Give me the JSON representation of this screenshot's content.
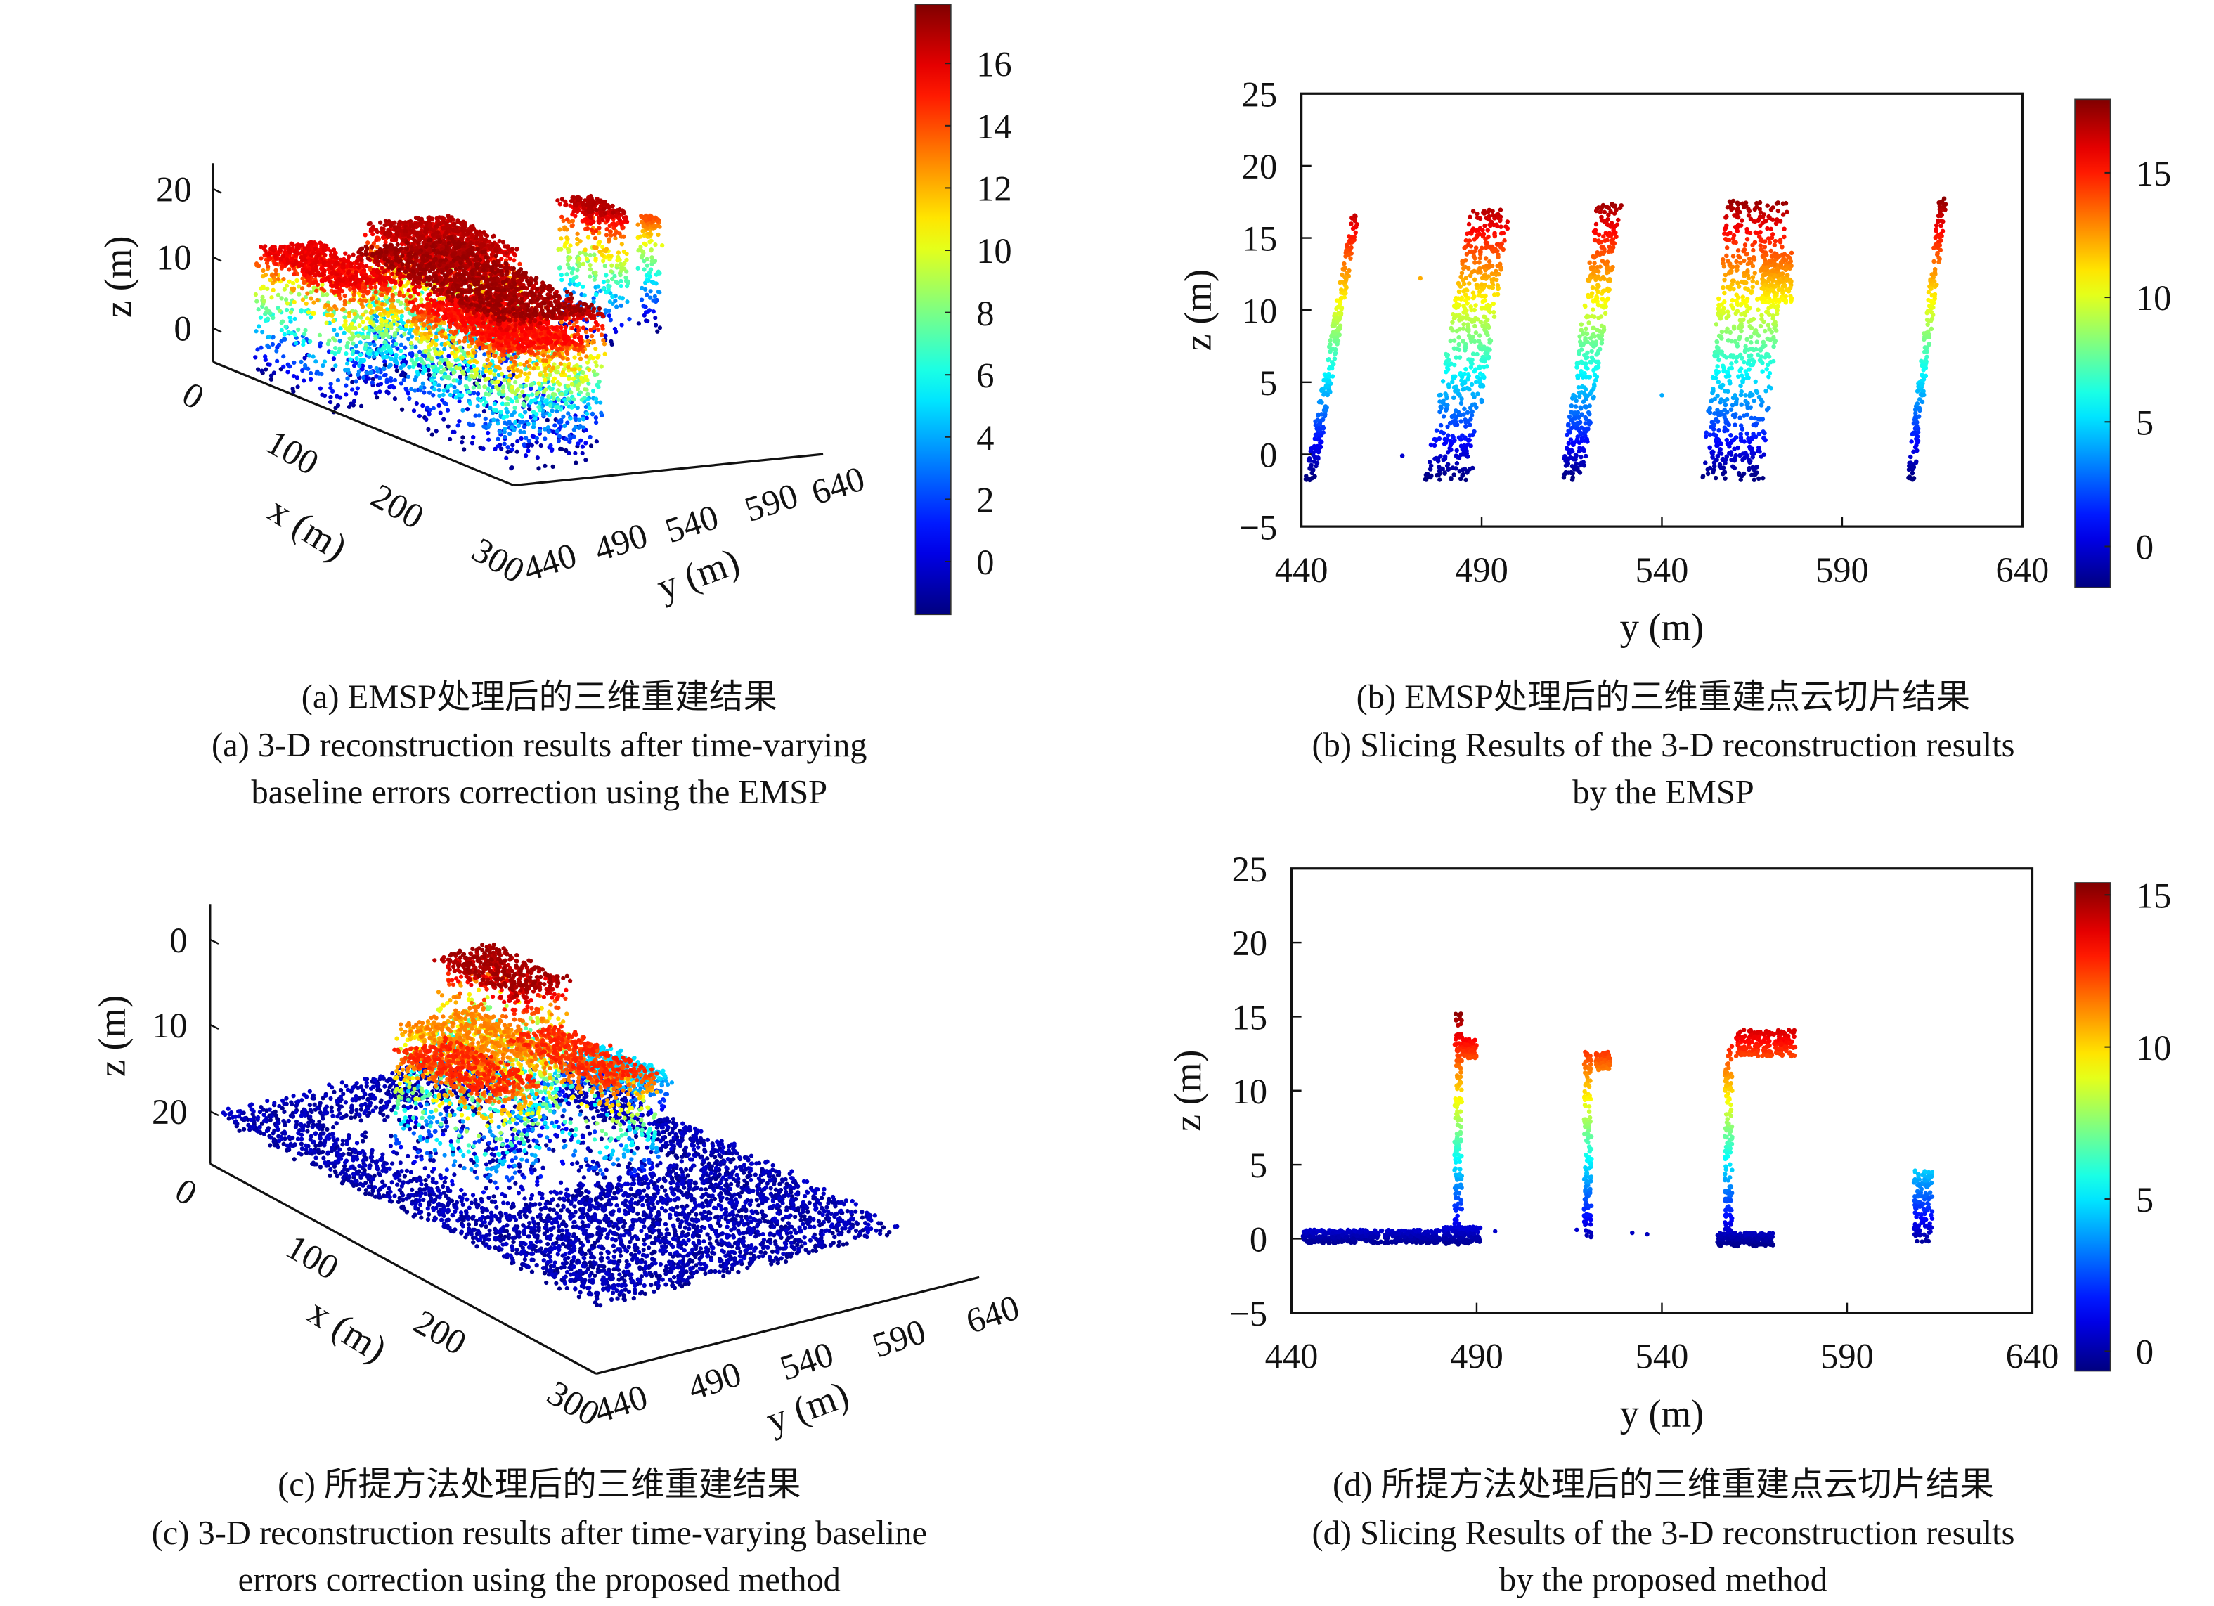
{
  "captions": {
    "a": {
      "zh": "(a) EMSP处理后的三维重建结果",
      "en1": "(a) 3-D reconstruction results after time-varying",
      "en2": "baseline errors correction using the EMSP"
    },
    "b": {
      "zh": "(b) EMSP处理后的三维重建点云切片结果",
      "en1": "(b) Slicing Results of the 3-D reconstruction results",
      "en2": "by the EMSP"
    },
    "c": {
      "zh": "(c) 所提方法处理后的三维重建结果",
      "en1": "(c) 3-D reconstruction results after time-varying baseline",
      "en2": "errors correction using the proposed method"
    },
    "d": {
      "zh": "(d) 所提方法处理后的三维重建点云切片结果",
      "en1": "(d) Slicing Results of the 3-D reconstruction results",
      "en2": "by the proposed method"
    }
  },
  "chart_data": [
    {
      "id": "a",
      "type": "scatter3d",
      "xlabel": "x (m)",
      "ylabel": "y (m)",
      "zlabel": "z (m)",
      "xticks": [
        0,
        100,
        200,
        300
      ],
      "yticks": [
        440,
        490,
        540,
        590,
        640
      ],
      "zticks": [
        0,
        10,
        20
      ],
      "colorbar": {
        "colormap": "jet",
        "range": [
          -1.7,
          17.9
        ],
        "ticks": [
          0,
          2,
          4,
          6,
          8,
          10,
          12,
          14,
          16
        ]
      },
      "buildings": [
        {
          "x": [
            20,
            110
          ],
          "y": [
            440,
            470
          ],
          "z": [
            -2,
            16
          ]
        },
        {
          "x": [
            60,
            230
          ],
          "y": [
            470,
            520
          ],
          "z": [
            -2,
            17.5
          ]
        },
        {
          "x": [
            10,
            90
          ],
          "y": [
            500,
            540
          ],
          "z": [
            -2,
            17
          ]
        },
        {
          "x": [
            150,
            260
          ],
          "y": [
            460,
            500
          ],
          "z": [
            -2,
            15.5
          ]
        },
        {
          "x": [
            0,
            40
          ],
          "y": [
            600,
            615
          ],
          "z": [
            -2,
            17
          ]
        },
        {
          "x": [
            10,
            20
          ],
          "y": [
            635,
            640
          ],
          "z": [
            -2,
            14
          ]
        }
      ]
    },
    {
      "id": "b",
      "type": "scatter",
      "xlabel": "y (m)",
      "ylabel": "z (m)",
      "xlim": [
        440,
        640
      ],
      "ylim": [
        -5,
        25
      ],
      "xticks": [
        440,
        490,
        540,
        590,
        640
      ],
      "yticks": [
        -5,
        0,
        5,
        10,
        15,
        20,
        25
      ],
      "colorbar": {
        "colormap": "jet",
        "range": [
          -1.65,
          17.95
        ],
        "ticks": [
          0,
          5,
          10,
          15
        ]
      },
      "clusters": [
        {
          "y_bottom": [
            441,
            444
          ],
          "y_top": [
            454,
            456
          ],
          "z": [
            -1.8,
            16.6
          ]
        },
        {
          "y_bottom": [
            474,
            487
          ],
          "y_top": [
            487,
            498
          ],
          "z": [
            -1.8,
            17
          ]
        },
        {
          "y_bottom": [
            512,
            518
          ],
          "y_top": [
            522,
            529
          ],
          "z": [
            -1.8,
            17.4
          ]
        },
        {
          "y_bottom": [
            551,
            568
          ],
          "y_top": [
            558,
            575
          ],
          "z": [
            -1.8,
            17.6
          ]
        },
        {
          "y_bottom": [
            567,
            576
          ],
          "y_top": [
            568,
            576
          ],
          "z": [
            10.5,
            14
          ]
        },
        {
          "y_bottom": [
            608,
            610
          ],
          "y_top": [
            617,
            619
          ],
          "z": [
            -1.8,
            17.8
          ]
        }
      ],
      "outliers": [
        [
          473,
          12.2
        ],
        [
          468,
          -0.1
        ],
        [
          540,
          4.1
        ]
      ]
    },
    {
      "id": "c",
      "type": "scatter3d",
      "xlabel": "x (m)",
      "ylabel": "y (m)",
      "zlabel": "z (m)",
      "xticks": [
        0,
        100,
        200,
        300
      ],
      "yticks": [
        440,
        490,
        540,
        590,
        640
      ],
      "zticks": [
        0,
        10,
        20
      ],
      "colorbar": {
        "colormap": "jet",
        "range": [
          -0.7,
          15.4
        ],
        "ticks": []
      },
      "ground": {
        "x": [
          0,
          300
        ],
        "y": [
          440,
          600
        ],
        "z": 0
      },
      "buildings": [
        {
          "x": [
            95,
            165
          ],
          "y": [
            470,
            500
          ],
          "z": [
            0,
            13
          ]
        },
        {
          "x": [
            55,
            120
          ],
          "y": [
            500,
            540
          ],
          "z": [
            0,
            11.5
          ]
        },
        {
          "x": [
            25,
            85
          ],
          "y": [
            540,
            570
          ],
          "z": [
            0,
            15
          ]
        },
        {
          "x": [
            110,
            185
          ],
          "y": [
            520,
            548
          ],
          "z": [
            0,
            13
          ]
        },
        {
          "x": [
            70,
            120
          ],
          "y": [
            578,
            600
          ],
          "z": [
            0,
            5
          ]
        }
      ]
    },
    {
      "id": "d",
      "type": "scatter",
      "xlabel": "y (m)",
      "ylabel": "z (m)",
      "xlim": [
        440,
        640
      ],
      "ylim": [
        -5,
        25
      ],
      "xticks": [
        440,
        490,
        540,
        590,
        640
      ],
      "yticks": [
        -5,
        0,
        5,
        10,
        15,
        20,
        25
      ],
      "colorbar": {
        "colormap": "jet",
        "range": [
          -0.65,
          15.4
        ],
        "ticks": [
          0,
          5,
          10,
          15
        ]
      },
      "clusters": [
        {
          "y_bottom": [
            443,
            480
          ],
          "y_top": [
            443,
            480
          ],
          "z": [
            -0.3,
            0.6
          ]
        },
        {
          "y_bottom": [
            481,
            491
          ],
          "y_top": [
            481,
            491
          ],
          "z": [
            -0.4,
            0.8
          ]
        },
        {
          "y_bottom": [
            484,
            486
          ],
          "y_top": [
            484,
            486
          ],
          "z": [
            0,
            15.2
          ]
        },
        {
          "y_bottom": [
            486,
            490
          ],
          "y_top": [
            486,
            490
          ],
          "z": [
            12.2,
            13.6
          ]
        },
        {
          "y_bottom": [
            519,
            521
          ],
          "y_top": [
            519,
            521
          ],
          "z": [
            0,
            12.6
          ]
        },
        {
          "y_bottom": [
            522,
            526
          ],
          "y_top": [
            522,
            526
          ],
          "z": [
            11.4,
            12.6
          ]
        },
        {
          "y_bottom": [
            557,
            559
          ],
          "y_top": [
            557,
            559
          ],
          "z": [
            -0.6,
            13
          ]
        },
        {
          "y_bottom": [
            560,
            576
          ],
          "y_top": [
            560,
            576
          ],
          "z": [
            12.3,
            14.1
          ]
        },
        {
          "y_bottom": [
            555,
            570
          ],
          "y_top": [
            555,
            570
          ],
          "z": [
            -0.5,
            0.4
          ]
        },
        {
          "y_bottom": [
            608,
            613
          ],
          "y_top": [
            608,
            613
          ],
          "z": [
            -0.2,
            4.6
          ]
        }
      ],
      "outliers": [
        [
          517,
          0.6
        ],
        [
          536,
          0.3
        ],
        [
          532,
          0.4
        ],
        [
          495,
          0.5
        ]
      ]
    }
  ]
}
